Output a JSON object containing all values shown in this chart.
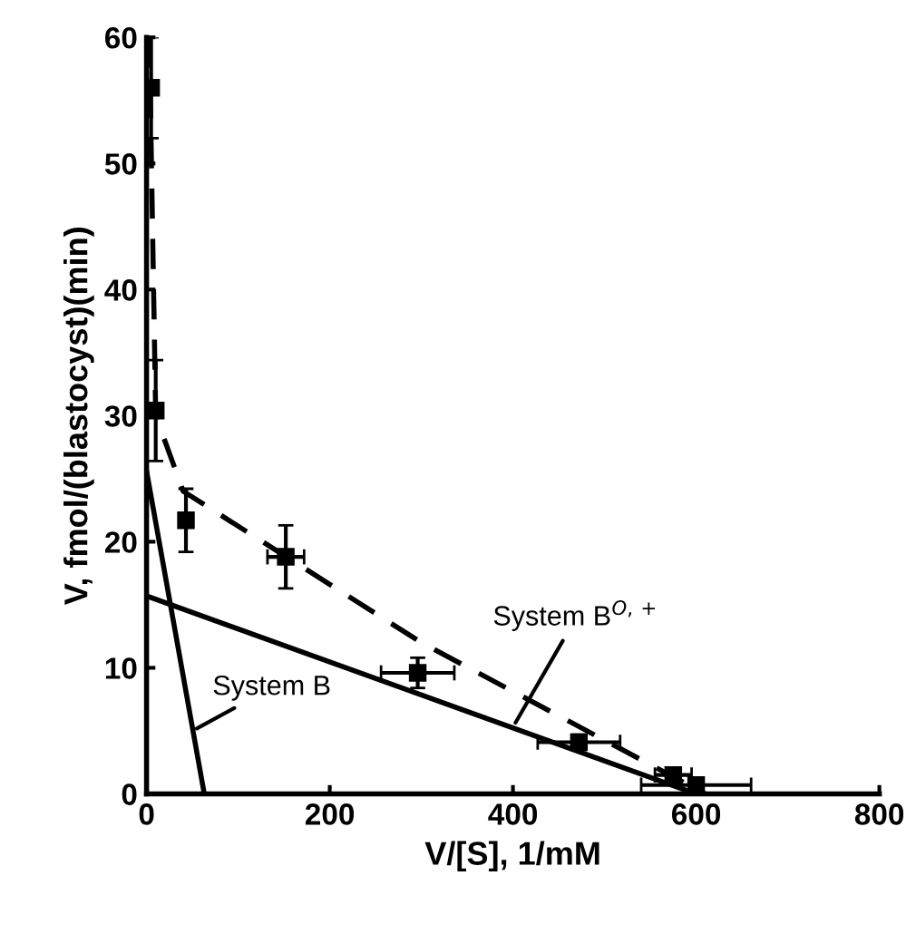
{
  "chart_data": {
    "type": "scatter",
    "xlabel": "V/[S], 1/mM",
    "ylabel": "V, fmol/(blastocyst)(min)",
    "xlim": [
      0,
      800
    ],
    "xticks": [
      0,
      200,
      400,
      600,
      800
    ],
    "ylim": [
      0,
      60
    ],
    "yticks": [
      0,
      10,
      20,
      30,
      40,
      50,
      60
    ],
    "grid": false,
    "legend": false,
    "series": [
      {
        "marker": "square",
        "color": "#000000",
        "x": [
          5,
          10,
          43,
          152,
          296,
          472,
          575,
          600
        ],
        "values": [
          56,
          30.4,
          21.7,
          18.8,
          9.6,
          4.1,
          1.5,
          0.7
        ],
        "errors": [
          4,
          4,
          2.5,
          2.5,
          1.2,
          0.6,
          0.6,
          0.6
        ],
        "xerrors": [
          null,
          null,
          null,
          20,
          40,
          45,
          20,
          60
        ]
      },
      {
        "type": "line",
        "line_style": "dashed",
        "color": "#000000",
        "x": [
          3,
          10,
          40,
          300,
          610
        ],
        "values": [
          60,
          30,
          24,
          12,
          0
        ]
      },
      {
        "type": "line",
        "line_style": "solid",
        "color": "#000000",
        "x": [
          0,
          600
        ],
        "values": [
          15.7,
          0
        ]
      },
      {
        "type": "line",
        "line_style": "solid",
        "color": "#000000",
        "x": [
          0,
          63
        ],
        "values": [
          25.6,
          0
        ]
      }
    ],
    "annotations": [
      {
        "text": "System B",
        "x": 50,
        "y": 5
      },
      {
        "text": "System B$^{O,+}$",
        "x": 400,
        "y": 5.3
      }
    ]
  }
}
